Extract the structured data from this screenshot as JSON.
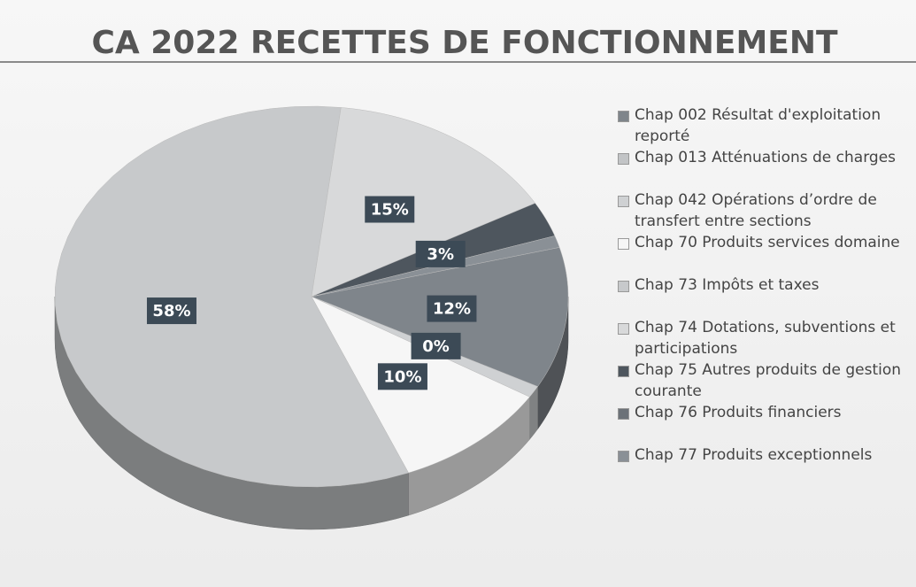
{
  "chart_data": {
    "type": "pie",
    "title": "CA 2022 RECETTES DE FONCTIONNEMENT",
    "categories": [
      "Chap 002 Résultat d'exploitation reporté",
      "Chap 013 Atténuations de charges",
      "Chap 042 Opérations d’ordre de transfert entre sections",
      "Chap 70 Produits services domaine",
      "Chap 73 Impôts et taxes",
      "Chap 74 Dotations, subventions et participations",
      "Chap 75 Autres produits de gestion courante",
      "Chap 76 Produits financiers",
      "Chap 77 Produits exceptionnels"
    ],
    "values": [
      12,
      0,
      1,
      10,
      58,
      15,
      3,
      0,
      1
    ],
    "value_labels": [
      "12%",
      "0%",
      null,
      "10%",
      "58%",
      "15%",
      "3%",
      null,
      null
    ],
    "colors": [
      "#7f858b",
      "#c2c4c6",
      "#cfd1d3",
      "#f6f6f6",
      "#c7c9cb",
      "#d8d9da",
      "#4e565e",
      "#6c7278",
      "#8a9096"
    ],
    "legend": "right"
  }
}
